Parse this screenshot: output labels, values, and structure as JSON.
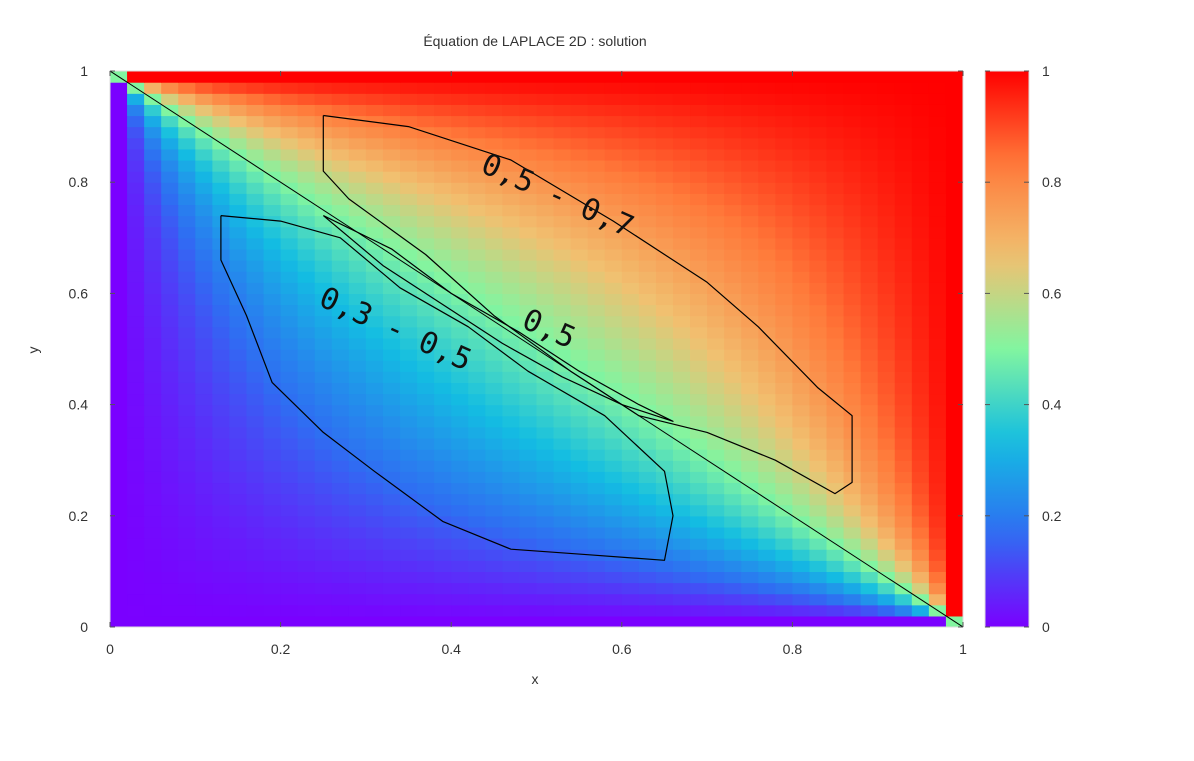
{
  "chart_data": {
    "type": "heatmap",
    "title": "Équation de LAPLACE 2D : solution",
    "xlabel": "x",
    "ylabel": "y",
    "xlim": [
      0,
      1
    ],
    "ylim": [
      0,
      1
    ],
    "x_ticks": [
      "0",
      "0.2",
      "0.4",
      "0.6",
      "0.8",
      "1"
    ],
    "y_ticks": [
      "0",
      "0.2",
      "0.4",
      "0.6",
      "0.8",
      "1"
    ],
    "colorbar": {
      "range": [
        0,
        1
      ],
      "ticks": [
        "0",
        "0.2",
        "0.4",
        "0.6",
        "0.8",
        "1"
      ],
      "colors": [
        "#7a00ff",
        "#2f6df2",
        "#13bde2",
        "#82f5a0",
        "#f1c070",
        "#ff7a3a",
        "#ff0000"
      ]
    },
    "grid": false,
    "field": {
      "description_formula": "u(x,y) on unit square, 0 along bottom and left edges, 1 along top and right edges",
      "resolution": 50
    },
    "line": {
      "name": "diagonal",
      "x": [
        0,
        1
      ],
      "y": [
        1,
        0
      ]
    },
    "annotations": [
      {
        "text": "0,5 - 0,7",
        "x": 0.52,
        "y": 0.76
      },
      {
        "text": "0,5",
        "x": 0.51,
        "y": 0.52
      },
      {
        "text": "0,3 - 0,5",
        "x": 0.33,
        "y": 0.52
      }
    ],
    "annotation_regions": [
      {
        "name": "region-05-07",
        "points": [
          [
            0.25,
            0.92
          ],
          [
            0.35,
            0.9
          ],
          [
            0.47,
            0.84
          ],
          [
            0.59,
            0.73
          ],
          [
            0.7,
            0.62
          ],
          [
            0.76,
            0.54
          ],
          [
            0.83,
            0.43
          ],
          [
            0.87,
            0.38
          ],
          [
            0.87,
            0.26
          ],
          [
            0.85,
            0.24
          ],
          [
            0.78,
            0.3
          ],
          [
            0.7,
            0.35
          ],
          [
            0.62,
            0.38
          ],
          [
            0.54,
            0.46
          ],
          [
            0.45,
            0.56
          ],
          [
            0.37,
            0.67
          ],
          [
            0.28,
            0.77
          ],
          [
            0.25,
            0.82
          ],
          [
            0.25,
            0.92
          ]
        ]
      },
      {
        "name": "region-03-05",
        "points": [
          [
            0.13,
            0.74
          ],
          [
            0.2,
            0.73
          ],
          [
            0.27,
            0.7
          ],
          [
            0.34,
            0.61
          ],
          [
            0.42,
            0.54
          ],
          [
            0.49,
            0.46
          ],
          [
            0.58,
            0.38
          ],
          [
            0.65,
            0.28
          ],
          [
            0.66,
            0.2
          ],
          [
            0.65,
            0.12
          ],
          [
            0.56,
            0.13
          ],
          [
            0.47,
            0.14
          ],
          [
            0.39,
            0.19
          ],
          [
            0.31,
            0.28
          ],
          [
            0.25,
            0.35
          ],
          [
            0.19,
            0.44
          ],
          [
            0.16,
            0.56
          ],
          [
            0.13,
            0.66
          ],
          [
            0.13,
            0.74
          ]
        ]
      },
      {
        "name": "region-05",
        "points": [
          [
            0.25,
            0.74
          ],
          [
            0.33,
            0.68
          ],
          [
            0.4,
            0.6
          ],
          [
            0.48,
            0.53
          ],
          [
            0.55,
            0.46
          ],
          [
            0.62,
            0.4
          ],
          [
            0.66,
            0.37
          ],
          [
            0.6,
            0.4
          ],
          [
            0.53,
            0.45
          ],
          [
            0.46,
            0.51
          ],
          [
            0.39,
            0.58
          ],
          [
            0.32,
            0.65
          ],
          [
            0.25,
            0.74
          ]
        ]
      }
    ]
  }
}
